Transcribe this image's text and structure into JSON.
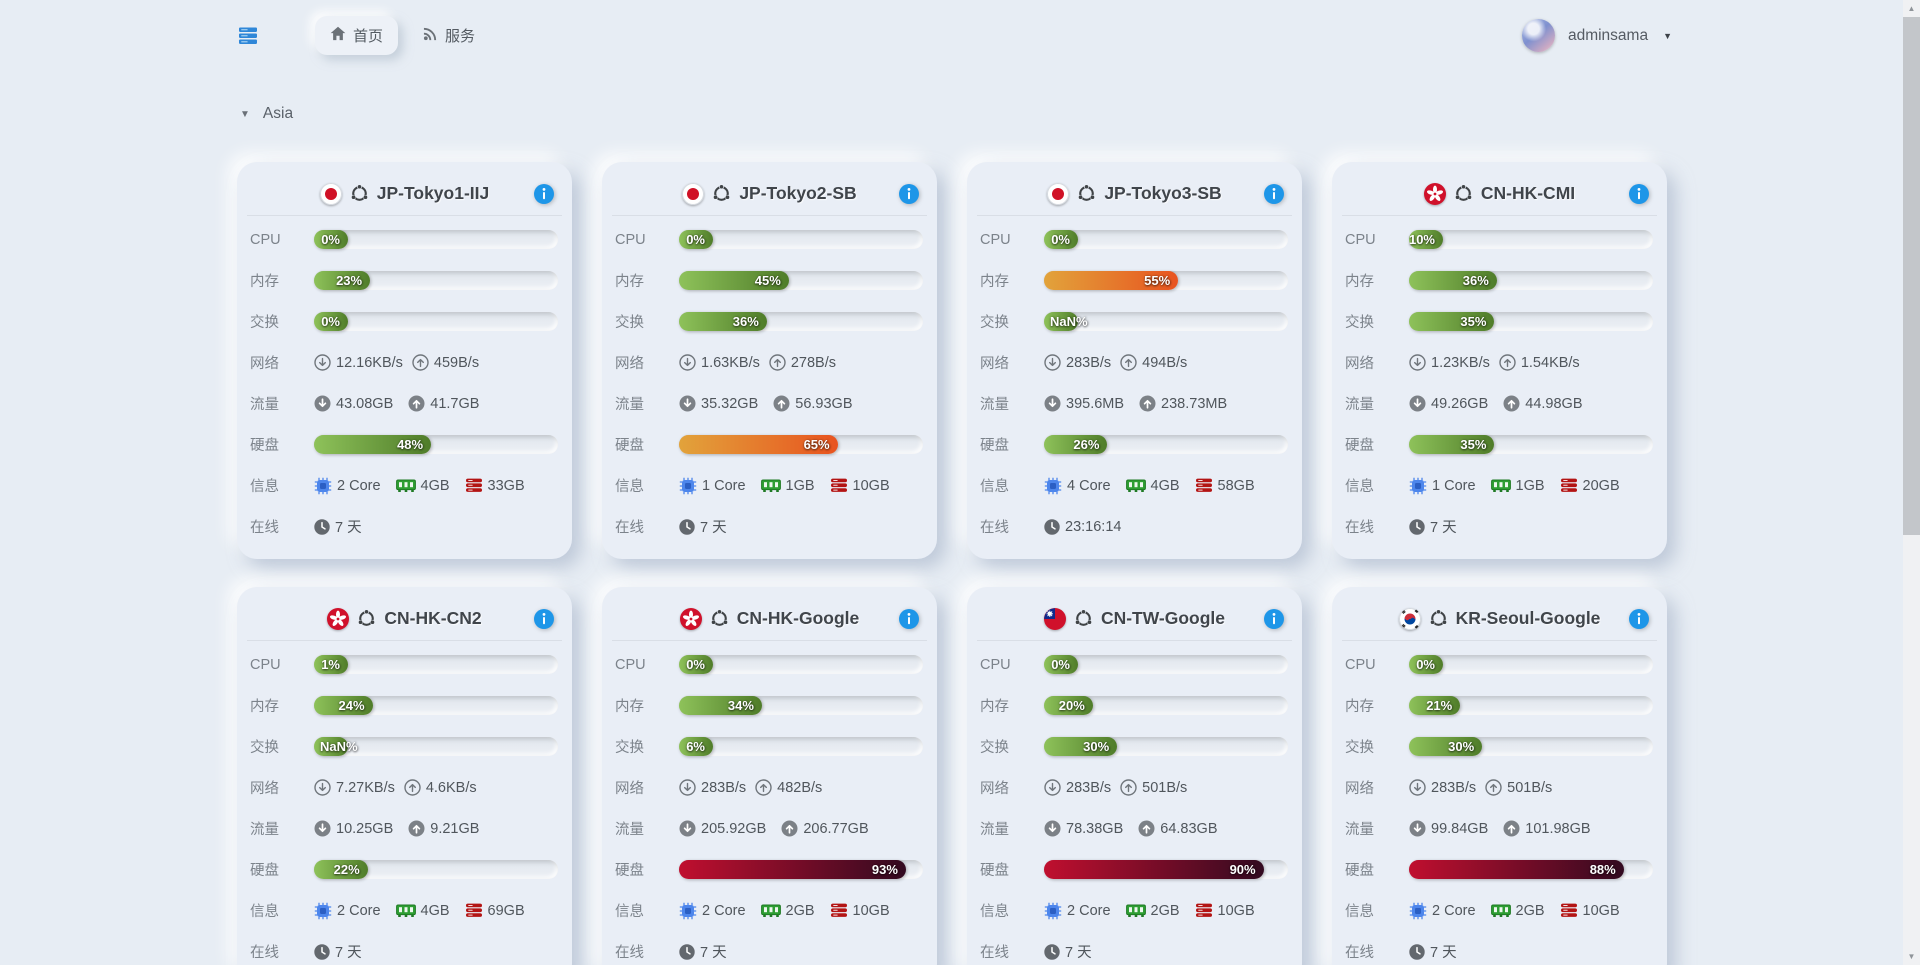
{
  "navbar": {
    "logo_icon": "server-stack-icon",
    "tabs": [
      {
        "label": "首页",
        "icon": "home-icon",
        "active": true
      },
      {
        "label": "服务",
        "icon": "rss-icon",
        "active": false
      }
    ],
    "user": {
      "name": "adminsama",
      "menu_icon": "chevron-down-icon"
    }
  },
  "section": {
    "title": "Asia",
    "collapse_icon": "caret-down-icon"
  },
  "labels": {
    "cpu": "CPU",
    "memory": "内存",
    "swap": "交换",
    "network": "网络",
    "traffic": "流量",
    "disk": "硬盘",
    "info": "信息",
    "uptime": "在线"
  },
  "colors": {
    "page_bg": "#e7edf4",
    "accent_blue": "#1e96e8",
    "bar_green": [
      "#8ec25a",
      "#4f7c29"
    ],
    "bar_orange": [
      "#e2a33b",
      "#e8531f"
    ],
    "bar_red": [
      "#c00f2f",
      "#320a20"
    ]
  },
  "servers": [
    {
      "name": "JP-Tokyo1-IIJ",
      "flag": "jp",
      "cpu_pct": "0%",
      "cpu_val": 0,
      "mem_pct": "23%",
      "mem_val": 23,
      "swap_pct": "0%",
      "swap_val": 0,
      "net_down": "12.16KB/s",
      "net_up": "459B/s",
      "traffic_down": "43.08GB",
      "traffic_up": "41.7GB",
      "disk_pct": "48%",
      "disk_val": 48,
      "cores": "2 Core",
      "ram": "4GB",
      "disk_total": "33GB",
      "uptime": "7 天"
    },
    {
      "name": "JP-Tokyo2-SB",
      "flag": "jp",
      "cpu_pct": "0%",
      "cpu_val": 0,
      "mem_pct": "45%",
      "mem_val": 45,
      "swap_pct": "36%",
      "swap_val": 36,
      "net_down": "1.63KB/s",
      "net_up": "278B/s",
      "traffic_down": "35.32GB",
      "traffic_up": "56.93GB",
      "disk_pct": "65%",
      "disk_val": 65,
      "cores": "1 Core",
      "ram": "1GB",
      "disk_total": "10GB",
      "uptime": "7 天"
    },
    {
      "name": "JP-Tokyo3-SB",
      "flag": "jp",
      "cpu_pct": "0%",
      "cpu_val": 0,
      "mem_pct": "55%",
      "mem_val": 55,
      "swap_pct": "NaN%",
      "swap_val": null,
      "net_down": "283B/s",
      "net_up": "494B/s",
      "traffic_down": "395.6MB",
      "traffic_up": "238.73MB",
      "disk_pct": "26%",
      "disk_val": 26,
      "cores": "4 Core",
      "ram": "4GB",
      "disk_total": "58GB",
      "uptime": "23:16:14"
    },
    {
      "name": "CN-HK-CMI",
      "flag": "hk",
      "cpu_pct": "10%",
      "cpu_val": 10,
      "mem_pct": "36%",
      "mem_val": 36,
      "swap_pct": "35%",
      "swap_val": 35,
      "net_down": "1.23KB/s",
      "net_up": "1.54KB/s",
      "traffic_down": "49.26GB",
      "traffic_up": "44.98GB",
      "disk_pct": "35%",
      "disk_val": 35,
      "cores": "1 Core",
      "ram": "1GB",
      "disk_total": "20GB",
      "uptime": "7 天"
    },
    {
      "name": "CN-HK-CN2",
      "flag": "hk",
      "cpu_pct": "1%",
      "cpu_val": 1,
      "mem_pct": "24%",
      "mem_val": 24,
      "swap_pct": "NaN%",
      "swap_val": null,
      "net_down": "7.27KB/s",
      "net_up": "4.6KB/s",
      "traffic_down": "10.25GB",
      "traffic_up": "9.21GB",
      "disk_pct": "22%",
      "disk_val": 22,
      "cores": "2 Core",
      "ram": "4GB",
      "disk_total": "69GB",
      "uptime": "7 天"
    },
    {
      "name": "CN-HK-Google",
      "flag": "hk",
      "cpu_pct": "0%",
      "cpu_val": 0,
      "mem_pct": "34%",
      "mem_val": 34,
      "swap_pct": "6%",
      "swap_val": 6,
      "net_down": "283B/s",
      "net_up": "482B/s",
      "traffic_down": "205.92GB",
      "traffic_up": "206.77GB",
      "disk_pct": "93%",
      "disk_val": 93,
      "cores": "2 Core",
      "ram": "2GB",
      "disk_total": "10GB",
      "uptime": "7 天"
    },
    {
      "name": "CN-TW-Google",
      "flag": "tw",
      "cpu_pct": "0%",
      "cpu_val": 0,
      "mem_pct": "20%",
      "mem_val": 20,
      "swap_pct": "30%",
      "swap_val": 30,
      "net_down": "283B/s",
      "net_up": "501B/s",
      "traffic_down": "78.38GB",
      "traffic_up": "64.83GB",
      "disk_pct": "90%",
      "disk_val": 90,
      "cores": "2 Core",
      "ram": "2GB",
      "disk_total": "10GB",
      "uptime": "7 天"
    },
    {
      "name": "KR-Seoul-Google",
      "flag": "kr",
      "cpu_pct": "0%",
      "cpu_val": 0,
      "mem_pct": "21%",
      "mem_val": 21,
      "swap_pct": "30%",
      "swap_val": 30,
      "net_down": "283B/s",
      "net_up": "501B/s",
      "traffic_down": "99.84GB",
      "traffic_up": "101.98GB",
      "disk_pct": "88%",
      "disk_val": 88,
      "cores": "2 Core",
      "ram": "2GB",
      "disk_total": "10GB",
      "uptime": "7 天"
    }
  ]
}
